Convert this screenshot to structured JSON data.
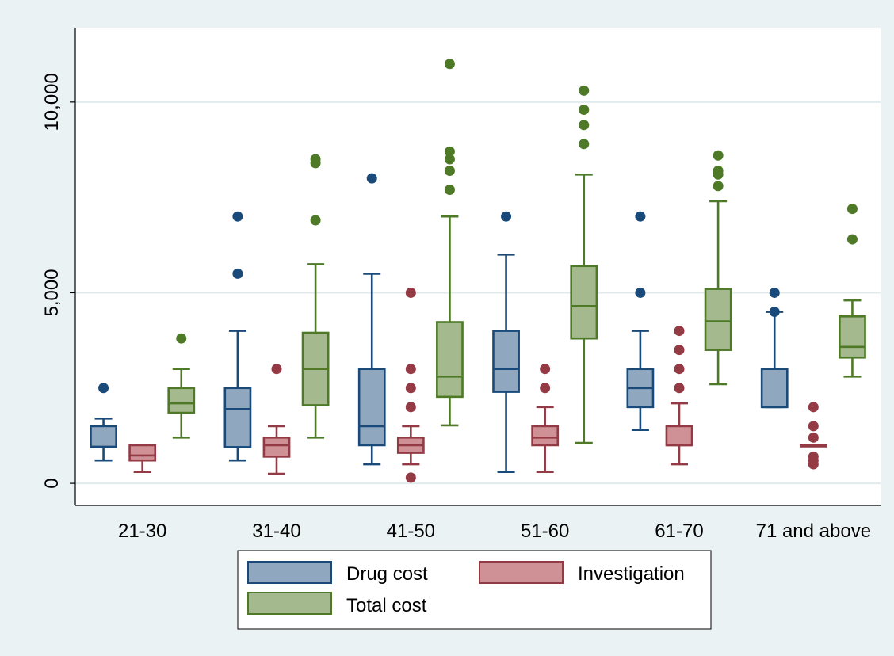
{
  "chart_data": {
    "type": "boxplot",
    "title": "",
    "xlabel": "",
    "ylabel": "",
    "ylim": [
      -580,
      11950
    ],
    "yticks": [
      {
        "value": 0,
        "label": "0"
      },
      {
        "value": 5000,
        "label": "5,000"
      },
      {
        "value": 10000,
        "label": "10,000"
      }
    ],
    "grid": true,
    "legend_position": "bottom",
    "categories": [
      "21-30",
      "31-40",
      "41-50",
      "51-60",
      "61-70",
      "71 and above"
    ],
    "series": [
      {
        "name": "Drug cost",
        "fill": "#8fa7bf",
        "stroke": "#1a4a7a",
        "boxes": [
          {
            "lw": 600,
            "q1": 950,
            "med": 960,
            "q3": 1500,
            "uw": 1700,
            "outliers": [
              2500
            ]
          },
          {
            "lw": 600,
            "q1": 950,
            "med": 1950,
            "q3": 2500,
            "uw": 4000,
            "outliers": [
              5500,
              7000
            ]
          },
          {
            "lw": 500,
            "q1": 1000,
            "med": 1500,
            "q3": 3000,
            "uw": 5500,
            "outliers": [
              8000
            ]
          },
          {
            "lw": 300,
            "q1": 2400,
            "med": 3000,
            "q3": 4000,
            "uw": 6000,
            "outliers": [
              7000
            ]
          },
          {
            "lw": 1400,
            "q1": 2000,
            "med": 2500,
            "q3": 3000,
            "uw": 4000,
            "outliers": [
              5000,
              7000
            ]
          },
          {
            "lw": 2000,
            "q1": 2000,
            "med": 2000,
            "q3": 3000,
            "uw": 4500,
            "outliers": [
              4500,
              5000
            ]
          }
        ]
      },
      {
        "name": "Investigation",
        "fill": "#cf9196",
        "stroke": "#943a45",
        "boxes": [
          {
            "lw": 300,
            "q1": 600,
            "med": 730,
            "q3": 1000,
            "uw": 1000,
            "outliers": []
          },
          {
            "lw": 250,
            "q1": 700,
            "med": 1000,
            "q3": 1200,
            "uw": 1500,
            "outliers": [
              3000
            ]
          },
          {
            "lw": 500,
            "q1": 800,
            "med": 1000,
            "q3": 1200,
            "uw": 1500,
            "outliers": [
              150,
              2000,
              2500,
              3000,
              5000
            ]
          },
          {
            "lw": 300,
            "q1": 1000,
            "med": 1200,
            "q3": 1500,
            "uw": 2000,
            "outliers": [
              2500,
              3000
            ]
          },
          {
            "lw": 500,
            "q1": 1000,
            "med": 1000,
            "q3": 1500,
            "uw": 2100,
            "outliers": [
              2500,
              3000,
              3500,
              4000
            ]
          },
          {
            "lw": 1000,
            "q1": 1000,
            "med": 1000,
            "q3": 1000,
            "uw": 1000,
            "outliers": [
              500,
              600,
              700,
              1200,
              1500,
              2000
            ]
          }
        ]
      },
      {
        "name": "Total cost",
        "fill": "#a5b98f",
        "stroke": "#4e7a28",
        "boxes": [
          {
            "lw": 1200,
            "q1": 1850,
            "med": 2100,
            "q3": 2500,
            "uw": 3000,
            "outliers": [
              3800
            ]
          },
          {
            "lw": 1200,
            "q1": 2050,
            "med": 3000,
            "q3": 3950,
            "uw": 5750,
            "outliers": [
              6900,
              8400,
              8500
            ]
          },
          {
            "lw": 1520,
            "q1": 2270,
            "med": 2800,
            "q3": 4230,
            "uw": 7000,
            "outliers": [
              7700,
              8200,
              8500,
              8700,
              11000
            ]
          },
          {
            "lw": 1060,
            "q1": 3800,
            "med": 4650,
            "q3": 5700,
            "uw": 8100,
            "outliers": [
              8900,
              9400,
              9800,
              10300
            ]
          },
          {
            "lw": 2600,
            "q1": 3500,
            "med": 4250,
            "q3": 5100,
            "uw": 7400,
            "outliers": [
              7800,
              8100,
              8200,
              8600
            ]
          },
          {
            "lw": 2800,
            "q1": 3300,
            "med": 3580,
            "q3": 4380,
            "uw": 4800,
            "outliers": [
              6400,
              7200
            ]
          }
        ]
      }
    ]
  }
}
